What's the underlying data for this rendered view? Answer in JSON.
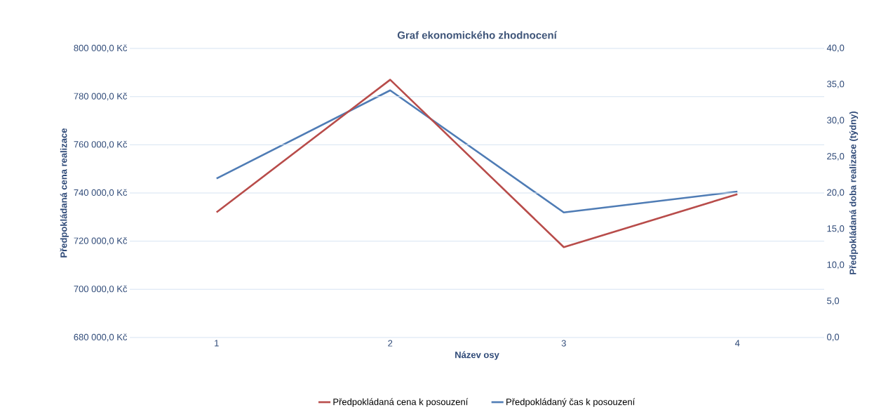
{
  "chart_data": {
    "type": "line",
    "title": "Graf ekonomického zhodnocení",
    "xlabel": "Název osy",
    "ylabel": "Předpokládaná cena realizace",
    "y2label": "Předpokládaná doba realizace (týdny)",
    "categories": [
      "1",
      "2",
      "3",
      "4"
    ],
    "series": [
      {
        "name": "Předpokládaná cena k posouzení",
        "color": "#b84c4a",
        "values": [
          732000,
          787000,
          717500,
          739500
        ]
      },
      {
        "name": "Předpokládaný čas k posouzení",
        "color": "#4f7cb5",
        "values": [
          22.0,
          34.2,
          17.3,
          20.2
        ],
        "axis": "y2"
      }
    ],
    "ylim": [
      680000,
      800000
    ],
    "yticks": [
      {
        "value": 680000,
        "label": "680 000,0 Kč"
      },
      {
        "value": 700000,
        "label": "700 000,0 Kč"
      },
      {
        "value": 720000,
        "label": "720 000,0 Kč"
      },
      {
        "value": 740000,
        "label": "740 000,0 Kč"
      },
      {
        "value": 760000,
        "label": "760 000,0 Kč"
      },
      {
        "value": 780000,
        "label": "780 000,0 Kč"
      },
      {
        "value": 800000,
        "label": "800 000,0 Kč"
      }
    ],
    "y2lim": [
      0,
      40
    ],
    "y2ticks": [
      {
        "value": 0,
        "label": "0,0"
      },
      {
        "value": 5,
        "label": "5,0"
      },
      {
        "value": 10,
        "label": "10,0"
      },
      {
        "value": 15,
        "label": "15,0"
      },
      {
        "value": 20,
        "label": "20,0"
      },
      {
        "value": 25,
        "label": "25,0"
      },
      {
        "value": 30,
        "label": "30,0"
      },
      {
        "value": 35,
        "label": "35,0"
      },
      {
        "value": 40,
        "label": "40,0"
      }
    ],
    "grid": "y",
    "legend": "bottom",
    "marker": "none",
    "line_style": "solid"
  }
}
